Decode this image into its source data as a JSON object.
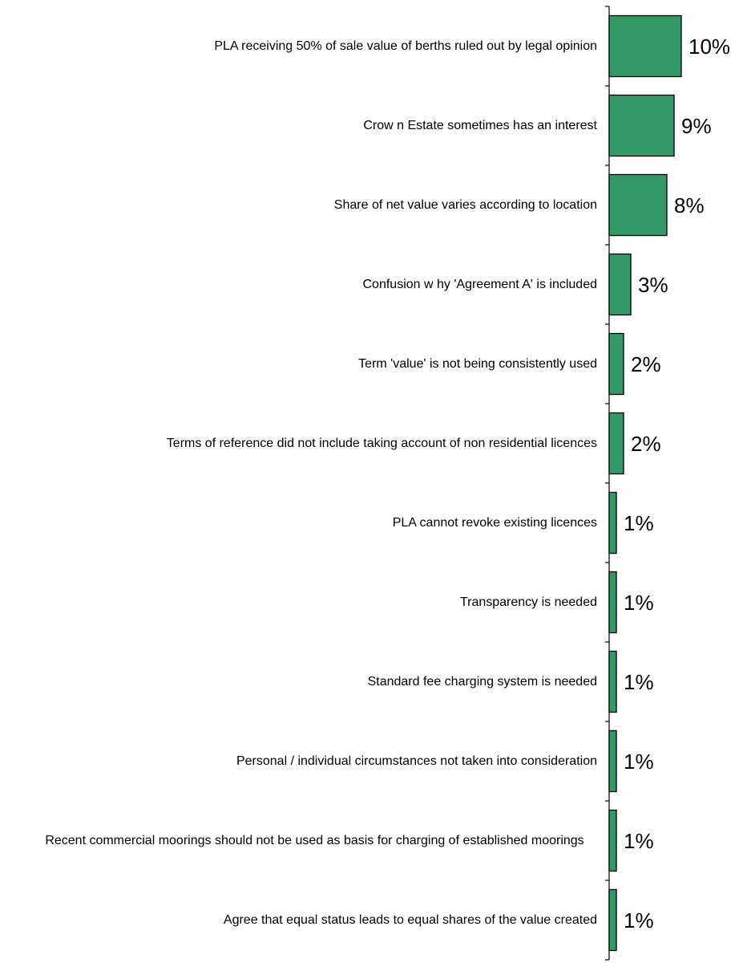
{
  "chart_data": {
    "type": "bar",
    "orientation": "horizontal",
    "categories": [
      "PLA receiving 50% of sale value of berths ruled out by legal opinion",
      "Crow n Estate sometimes has an interest",
      "Share of net value varies according to location",
      "Confusion w hy 'Agreement A' is included",
      "Term 'value' is not being consistently used",
      "Terms of reference did not include taking account of non residential licences",
      "PLA cannot revoke existing licences",
      "Transparency is needed",
      "Standard fee charging system is needed",
      "Personal / individual circumstances not taken into consideration",
      "Recent commercial moorings should not be used as basis for charging of established moorings",
      "Agree that equal status leads to equal shares of the value created"
    ],
    "values": [
      10,
      9,
      8,
      3,
      2,
      2,
      1,
      1,
      1,
      1,
      1,
      1
    ],
    "value_labels": [
      "10%",
      "9%",
      "8%",
      "3%",
      "2%",
      "2%",
      "1%",
      "1%",
      "1%",
      "1%",
      "1%",
      "1%"
    ],
    "unit": "%",
    "xlim": [
      0,
      10
    ],
    "bar_color": "#339966",
    "title": "",
    "xlabel": "",
    "ylabel": "",
    "grid": false,
    "legend": "none"
  }
}
